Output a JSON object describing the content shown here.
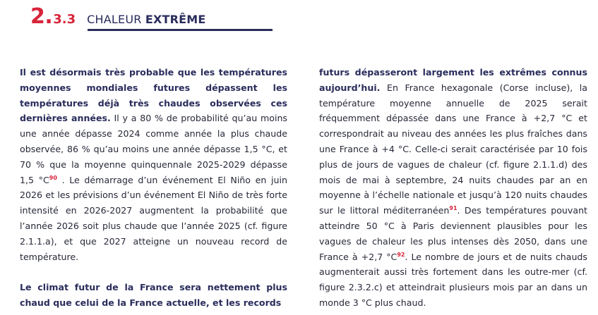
{
  "header": {
    "number_major": "2.",
    "number_minor": "3.3",
    "title_normal": "CHALEUR",
    "title_bold": "EXTRÊME"
  },
  "left_column": {
    "p1_lead": "Il est désormais très probable que les températures moyennes mondiales futures dépassent les températures déjà très chaudes observées ces dernières années.",
    "p1_text_a": " Il y a 80 % de probabilité qu’au moins une année dépasse 2024 comme année la plus chaude observée, 86 % qu’au moins une année dépasse 1,5 °C, et 70 % que la moyenne quinquennale 2025-2029 dépasse 1,5 °C",
    "fn90": "90",
    "p1_text_b": " . Le démarrage d’un événement El Niño en juin 2026 et les prévisions d’un événement El Niño de très forte intensité en 2026-2027 augmentent la probabilité que l’année 2026 soit plus chaude que l’année 2025 (cf. figure 2.1.1.a), et que 2027 atteigne un nouveau record de température.",
    "p2_lead": "Le climat futur de la France sera nettement plus chaud que celui de la France actuelle, et les records"
  },
  "right_column": {
    "p_lead": "futurs dépasseront largement les extrêmes connus aujourd’hui.",
    "text_a": " En France hexagonale (Corse incluse), la température moyenne annuelle de 2025 serait fréquemment dépassée dans une France à +2,7 °C et correspondrait au niveau des années les plus fraîches dans une France à +4 °C. Celle-ci serait caractérisée par 10 fois plus de jours de vagues de chaleur (cf. figure 2.1.1.d) des mois de mai à septembre, 24 nuits chaudes par an en moyenne à l’échelle nationale et jusqu’à 120 nuits chaudes sur le littoral méditerranéen",
    "fn91": "91",
    "text_b": ". Des températures pouvant atteindre 50 °C à Paris deviennent plausibles pour les vagues de chaleur les plus intenses dès 2050, dans une France à +2,7 °C",
    "fn92": "92",
    "text_c": ". Le nombre de jours et de nuits chauds augmenterait aussi très fortement dans les outre-mer (cf. figure 2.3.2.c) et atteindrait plusieurs mois par an dans un monde 3 °C plus chaud."
  },
  "colors": {
    "accent_red": "#d8243a",
    "navy": "#2a2d5c",
    "body_text": "#262838"
  }
}
